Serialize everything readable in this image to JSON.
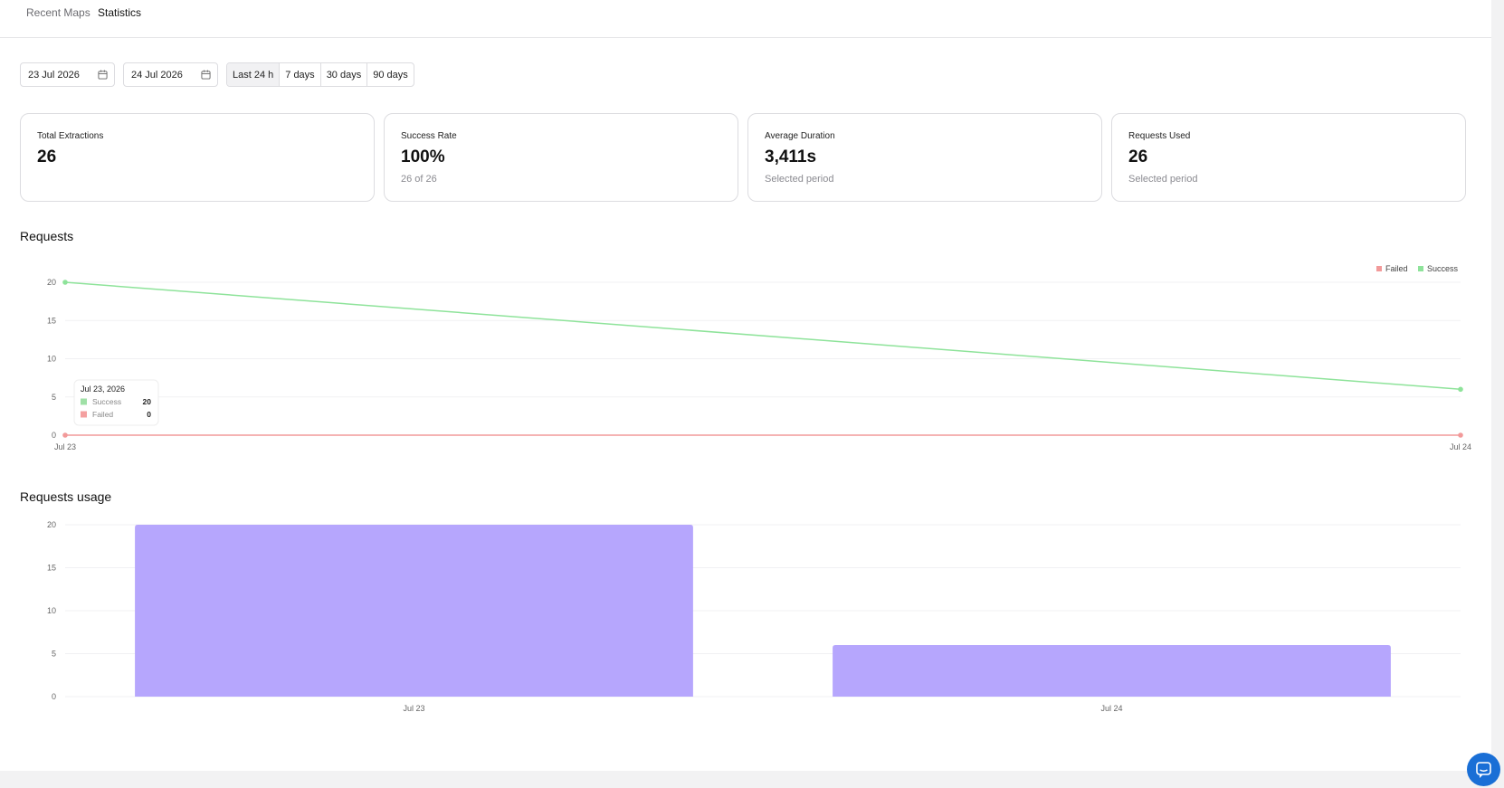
{
  "nav": {
    "tabs": [
      {
        "label": "Recent Maps"
      },
      {
        "label": "Statistics"
      }
    ]
  },
  "filters": {
    "start_date": "23 Jul 2026",
    "end_date": "24 Jul 2026",
    "ranges": [
      "Last 24 h",
      "7 days",
      "30 days",
      "90 days"
    ],
    "active_range": "Last 24 h"
  },
  "stats": [
    {
      "title": "Total Extractions",
      "value": "26",
      "sub": ""
    },
    {
      "title": "Success Rate",
      "value": "100%",
      "sub": "26 of 26"
    },
    {
      "title": "Average Duration",
      "value": "3,411s",
      "sub": "Selected period"
    },
    {
      "title": "Requests Used",
      "value": "26",
      "sub": "Selected period"
    }
  ],
  "requests_section": {
    "title": "Requests"
  },
  "usage_section": {
    "title": "Requests usage"
  },
  "tooltip": {
    "date": "Jul 23, 2026",
    "rows": [
      {
        "label": "Success",
        "value": "20",
        "color": "#9fe0a6"
      },
      {
        "label": "Failed",
        "value": "0",
        "color": "#f4a0a0"
      }
    ]
  },
  "colors": {
    "success": "#8ee39a",
    "failed": "#f29a9a",
    "usage_bar": "#b6a6fd",
    "chat_button": "#1a6fd6"
  },
  "chart_data": [
    {
      "type": "line",
      "title": "Requests",
      "x": [
        "Jul 23",
        "Jul 24"
      ],
      "series": [
        {
          "name": "Failed",
          "values": [
            0,
            0
          ]
        },
        {
          "name": "Success",
          "values": [
            20,
            6
          ]
        }
      ],
      "yticks": [
        0,
        5,
        10,
        15,
        20
      ],
      "ylim": [
        0,
        20
      ],
      "legend": "top-right",
      "grid": true
    },
    {
      "type": "bar",
      "title": "Requests usage",
      "categories": [
        "Jul 23",
        "Jul 24"
      ],
      "values": [
        20,
        6
      ],
      "yticks": [
        0,
        5,
        10,
        15,
        20
      ],
      "ylim": [
        0,
        20
      ],
      "grid": true
    }
  ],
  "icons": {
    "calendar": "calendar-icon",
    "chat": "chat-bubble-icon"
  }
}
